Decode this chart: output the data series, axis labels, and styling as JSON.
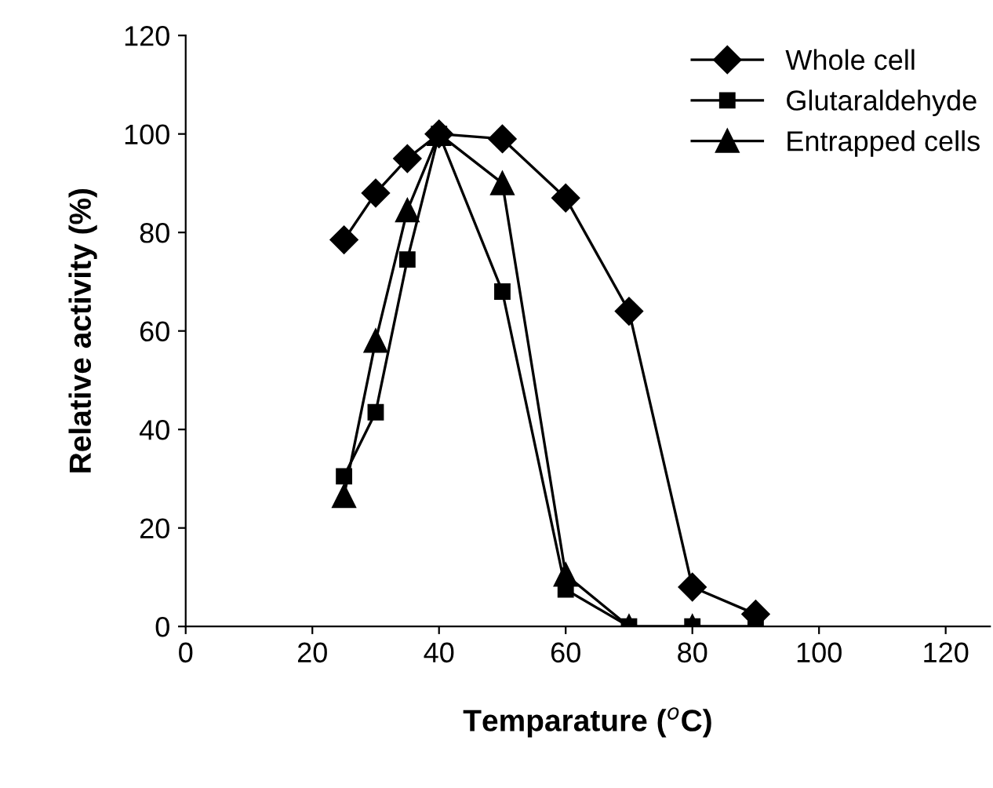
{
  "chart_data": {
    "type": "line",
    "xlabel": "Temparature ($^{o}$C)",
    "ylabel": "Relative activity (%)",
    "x": [
      25,
      30,
      35,
      40,
      50,
      60,
      70,
      80,
      90
    ],
    "series": [
      {
        "name": "Whole cell",
        "color": "#000000",
        "marker": "diamond",
        "values": [
          78.5,
          88,
          95,
          100,
          99,
          87,
          64,
          8,
          2.5
        ]
      },
      {
        "name": "Glutaraldehyde",
        "color": "#000000",
        "marker": "square",
        "values": [
          30.5,
          43.5,
          74.5,
          100,
          68,
          7.5,
          0,
          0,
          0
        ]
      },
      {
        "name": "Entrapped cells",
        "color": "#000000",
        "marker": "triangle",
        "values": [
          26.5,
          58,
          84.5,
          100,
          90,
          10.5,
          0,
          0,
          0
        ]
      }
    ],
    "xlim": [
      0,
      127
    ],
    "xticks": [
      0,
      20,
      40,
      60,
      80,
      100,
      120
    ],
    "ylim": [
      0,
      120
    ],
    "yticks": [
      0,
      20,
      40,
      60,
      80,
      100,
      120
    ],
    "grid": false,
    "legend": "top right",
    "line_style": "solid"
  }
}
